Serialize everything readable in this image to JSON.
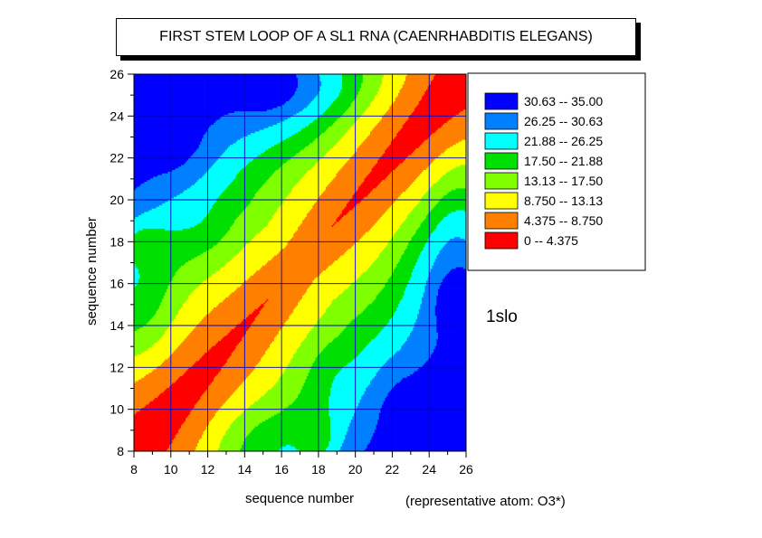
{
  "chart_data": {
    "type": "heatmap",
    "title": "FIRST STEM LOOP OF A SL1 RNA (CAENRHABDITIS ELEGANS)",
    "xlabel": "sequence number",
    "ylabel": "sequence number",
    "xlim": [
      8,
      26
    ],
    "ylim": [
      8,
      26
    ],
    "xticks": [
      8,
      10,
      12,
      14,
      16,
      18,
      20,
      22,
      24,
      26
    ],
    "yticks": [
      8,
      10,
      12,
      14,
      16,
      18,
      20,
      22,
      24,
      26
    ],
    "grid": true,
    "legend_position": "right",
    "levels": [
      {
        "label": "30.63  --  35.00",
        "min": 30.63,
        "max": 35.0,
        "color": "#0000ff"
      },
      {
        "label": "26.25  --  30.63",
        "min": 26.25,
        "max": 30.63,
        "color": "#0080ff"
      },
      {
        "label": "21.88  --  26.25",
        "min": 21.88,
        "max": 26.25,
        "color": "#00ffff"
      },
      {
        "label": "17.50  --  21.88",
        "min": 17.5,
        "max": 21.88,
        "color": "#00e000"
      },
      {
        "label": "13.13  --  17.50",
        "min": 13.13,
        "max": 17.5,
        "color": "#80ff00"
      },
      {
        "label": "8.750  --  13.13",
        "min": 8.75,
        "max": 13.13,
        "color": "#ffff00"
      },
      {
        "label": "4.375  --  8.750",
        "min": 4.375,
        "max": 8.75,
        "color": "#ff8000"
      },
      {
        "label": "0  --  4.375",
        "min": 0,
        "max": 4.375,
        "color": "#ff0000"
      }
    ],
    "annotation": "1slo",
    "note": "(representative atom: O3*)"
  }
}
